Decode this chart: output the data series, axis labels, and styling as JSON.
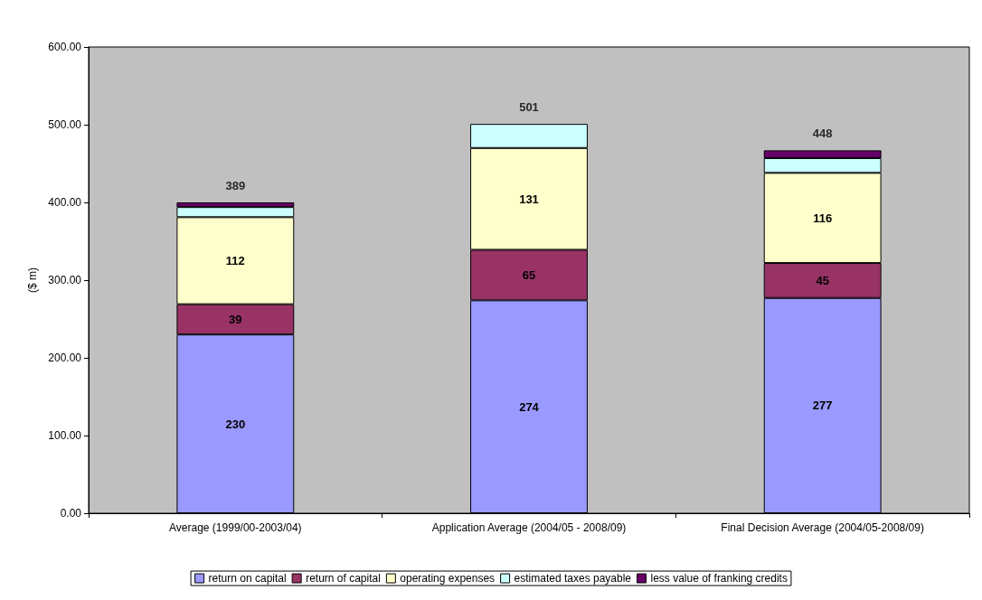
{
  "chart_data": {
    "type": "bar",
    "stacked": true,
    "ylabel": "($ m)",
    "categories": [
      "Average (1999/00-2003/04)",
      "Application Average (2004/05 - 2008/09)",
      "Final Decision Average (2004/05-2008/09)"
    ],
    "series": [
      {
        "name": "return on capital",
        "color": "#9999ff",
        "values": [
          230,
          274,
          277
        ],
        "value_labels": [
          "230",
          "274",
          "277"
        ]
      },
      {
        "name": "return of capital",
        "color": "#993366",
        "values": [
          39,
          65,
          45
        ],
        "value_labels": [
          "39",
          "65",
          "45"
        ]
      },
      {
        "name": "operating expenses",
        "color": "#ffffcc",
        "values": [
          112,
          131,
          116
        ],
        "value_labels": [
          "112",
          "131",
          "116"
        ]
      },
      {
        "name": "estimated taxes payable",
        "color": "#ccffff",
        "values": [
          13,
          31,
          19
        ]
      },
      {
        "name": "less value of franking credits",
        "color": "#660066",
        "values": [
          6,
          null,
          10
        ]
      }
    ],
    "annotations": [
      {
        "text": "389",
        "x": "Average (1999/00-2003/04)",
        "y": 400
      },
      {
        "text": "501",
        "x": "Application Average (2004/05 - 2008/09)",
        "y": 501
      },
      {
        "text": "448",
        "x": "Final Decision Average (2004/05-2008/09)",
        "y": 467
      }
    ],
    "ylim": [
      0,
      600
    ],
    "yticks": [
      {
        "value": 0,
        "label": "0.00"
      },
      {
        "value": 100,
        "label": "100.00"
      },
      {
        "value": 200,
        "label": "200.00"
      },
      {
        "value": 300,
        "label": "300.00"
      },
      {
        "value": 400,
        "label": "400.00"
      },
      {
        "value": 500,
        "label": "500.00"
      },
      {
        "value": 600,
        "label": "600.00"
      }
    ],
    "grid": false,
    "legend": "bottom"
  }
}
